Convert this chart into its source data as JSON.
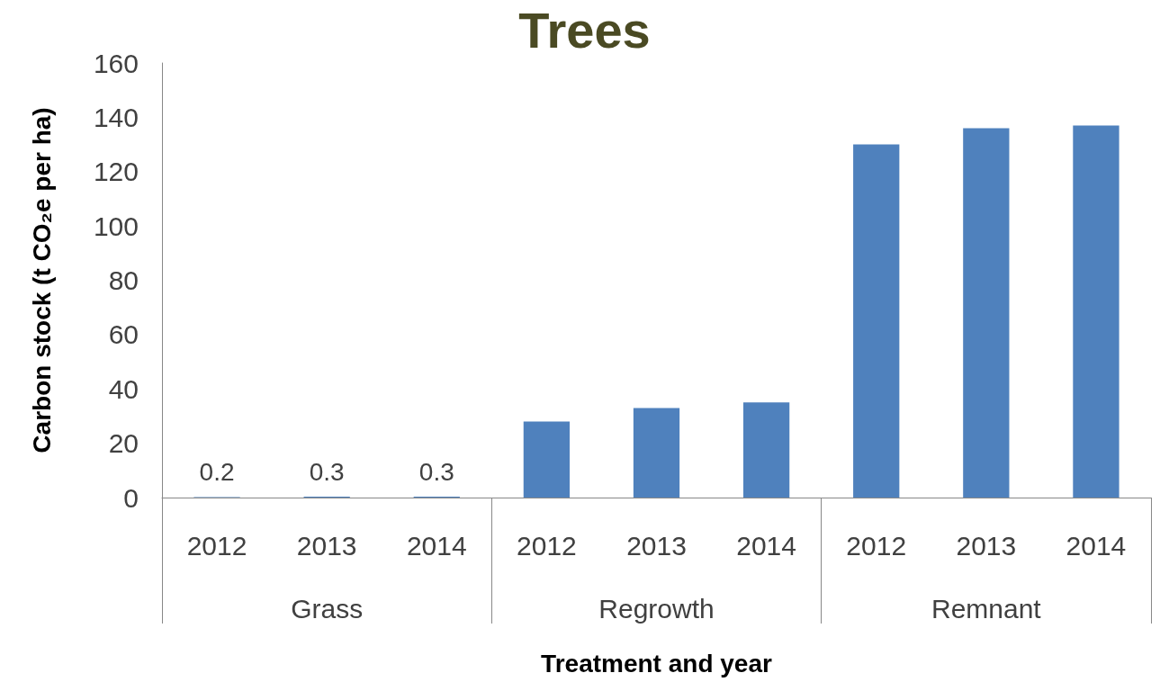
{
  "chart_data": {
    "type": "bar",
    "title": "Trees",
    "xlabel": "Treatment and year",
    "ylabel": "Carbon stock (t CO₂e per ha)",
    "categories": [
      "2012",
      "2013",
      "2014",
      "2012",
      "2013",
      "2014",
      "2012",
      "2013",
      "2014"
    ],
    "annotations": [
      "Grass",
      "Regrowth",
      "Remnant"
    ],
    "values": [
      0.2,
      0.3,
      0.3,
      28,
      33,
      35,
      130,
      136,
      137
    ],
    "value_labels": [
      "0.2",
      "0.3",
      "0.3",
      null,
      null,
      null,
      null,
      null,
      null
    ],
    "color": "#4f81bd",
    "ylim": [
      0,
      160
    ],
    "yticks": [
      0,
      20,
      40,
      60,
      80,
      100,
      120,
      140,
      160
    ],
    "grid": false
  }
}
